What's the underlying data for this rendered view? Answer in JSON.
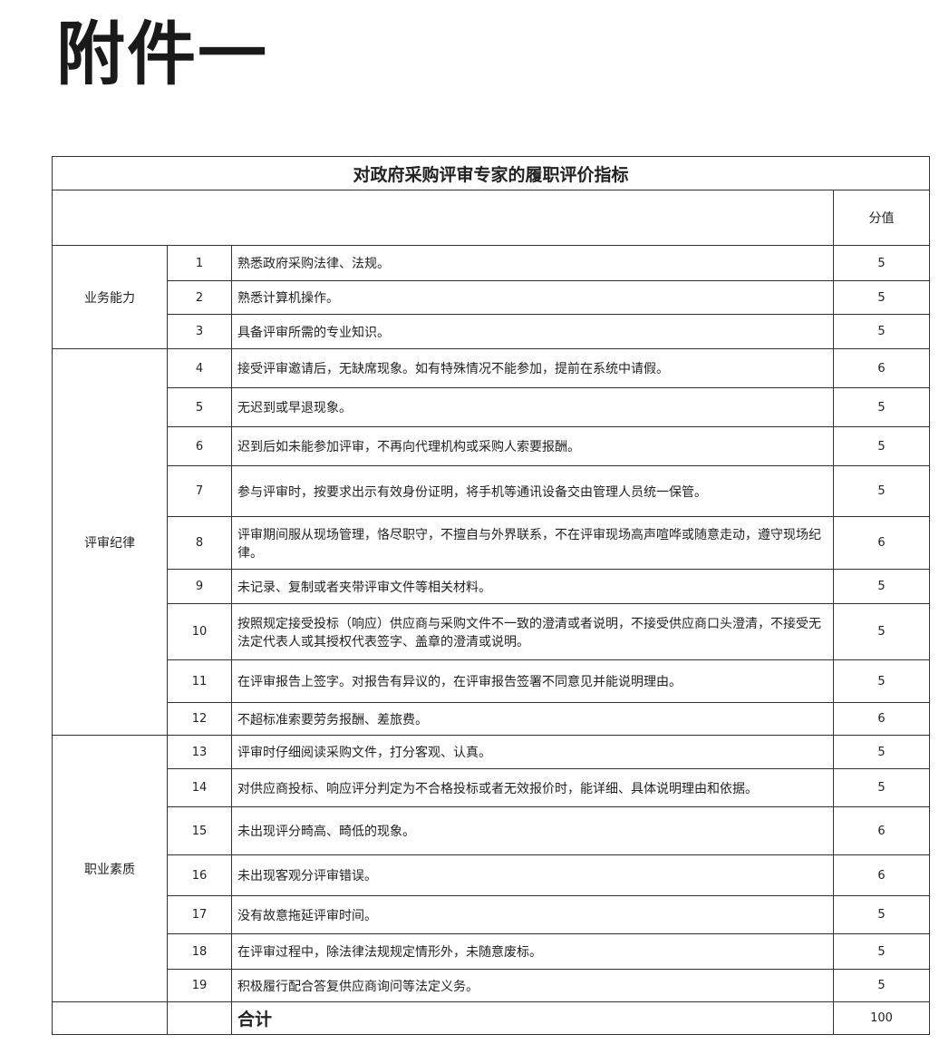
{
  "heading": "附件一",
  "table": {
    "title": "对政府采购评审专家的履职评价指标",
    "score_header": "分值",
    "groups": [
      {
        "category": "业务能力",
        "items": [
          {
            "no": "1",
            "text": "熟悉政府采购法律、法规。",
            "score": "5"
          },
          {
            "no": "2",
            "text": "熟悉计算机操作。",
            "score": "5"
          },
          {
            "no": "3",
            "text": "具备评审所需的专业知识。",
            "score": "5"
          }
        ]
      },
      {
        "category": "评审纪律",
        "items": [
          {
            "no": "4",
            "text": "接受评审邀请后，无缺席现象。如有特殊情况不能参加，提前在系统中请假。",
            "score": "6"
          },
          {
            "no": "5",
            "text": "无迟到或早退现象。",
            "score": "5"
          },
          {
            "no": "6",
            "text": "迟到后如未能参加评审，不再向代理机构或采购人索要报酬。",
            "score": "5"
          },
          {
            "no": "7",
            "text": "参与评审时，按要求出示有效身份证明，将手机等通讯设备交由管理人员统一保管。",
            "score": "5"
          },
          {
            "no": "8",
            "text": "评审期间服从现场管理，恪尽职守，不擅自与外界联系，不在评审现场高声喧哗或随意走动，遵守现场纪律。",
            "score": "6"
          },
          {
            "no": "9",
            "text": "未记录、复制或者夹带评审文件等相关材料。",
            "score": "5"
          },
          {
            "no": "10",
            "text": "按照规定接受投标（响应）供应商与采购文件不一致的澄清或者说明，不接受供应商口头澄清，不接受无法定代表人或其授权代表签字、盖章的澄清或说明。",
            "score": "5"
          },
          {
            "no": "11",
            "text": "在评审报告上签字。对报告有异议的，在评审报告签署不同意见并能说明理由。",
            "score": "5"
          },
          {
            "no": "12",
            "text": "不超标准索要劳务报酬、差旅费。",
            "score": "6"
          }
        ]
      },
      {
        "category": "职业素质",
        "items": [
          {
            "no": "13",
            "text": "评审时仔细阅读采购文件，打分客观、认真。",
            "score": "5"
          },
          {
            "no": "14",
            "text": "对供应商投标、响应评分判定为不合格投标或者无效报价时，能详细、具体说明理由和依据。",
            "score": "5"
          },
          {
            "no": "15",
            "text": "未出现评分畸高、畸低的现象。",
            "score": "6"
          },
          {
            "no": "16",
            "text": "未出现客观分评审错误。",
            "score": "6"
          },
          {
            "no": "17",
            "text": "没有故意拖延评审时间。",
            "score": "5"
          },
          {
            "no": "18",
            "text": "在评审过程中，除法律法规规定情形外，未随意废标。",
            "score": "5"
          },
          {
            "no": "19",
            "text": "积极履行配合答复供应商询问等法定义务。",
            "score": "5"
          }
        ]
      }
    ],
    "total_label": "合计",
    "total_score": "100"
  }
}
